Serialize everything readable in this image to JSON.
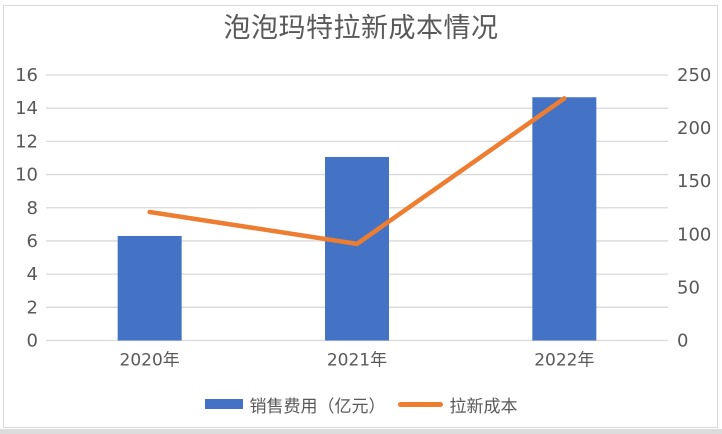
{
  "title": "泡泡玛特拉新成本情况",
  "chart_data": {
    "type": "bar",
    "subtype": "combo-bar-line",
    "title": "泡泡玛特拉新成本情况",
    "categories": [
      "2020年",
      "2021年",
      "2022年"
    ],
    "series": [
      {
        "name": "销售费用（亿元）",
        "type": "bar",
        "axis": "left",
        "color": "#4472C4",
        "values": [
          6.3,
          11.06,
          14.66
        ]
      },
      {
        "name": "拉新成本",
        "type": "line",
        "axis": "right",
        "color": "#ED7D31",
        "values": [
          121,
          91,
          228
        ]
      }
    ],
    "left_axis": {
      "min": 0,
      "max": 16,
      "step": 2,
      "ticks": [
        0,
        2,
        4,
        6,
        8,
        10,
        12,
        14,
        16
      ]
    },
    "right_axis": {
      "min": 0,
      "max": 250,
      "step": 50,
      "ticks": [
        0,
        50,
        100,
        150,
        200,
        250
      ]
    },
    "grid": true,
    "legend_position": "bottom",
    "xlabel": "",
    "ylabel": ""
  },
  "colors": {
    "bar": "#4472C4",
    "line": "#ED7D31",
    "gridline": "#D9D9D9",
    "axis_text": "#595959",
    "title_text": "#595959",
    "frame_border": "#D9D9D9"
  }
}
